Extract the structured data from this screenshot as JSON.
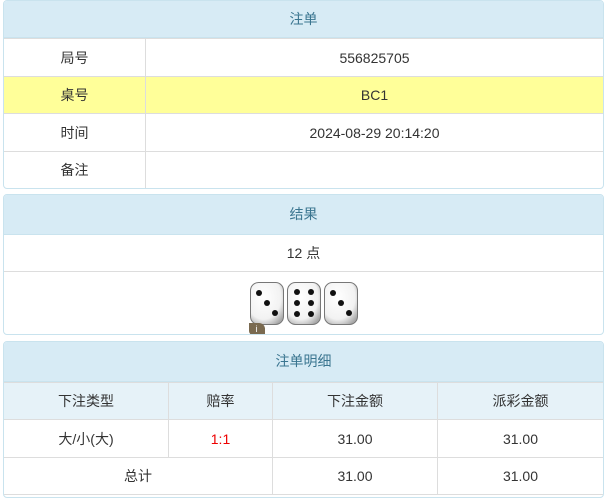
{
  "bet": {
    "title": "注单",
    "rows": [
      {
        "label": "局号",
        "value": "556825705"
      },
      {
        "label": "桌号",
        "value": "BC1"
      },
      {
        "label": "时间",
        "value": "2024-08-29 20:14:20"
      },
      {
        "label": "备注",
        "value": ""
      }
    ]
  },
  "result": {
    "title": "结果",
    "points": "12 点",
    "dice": [
      3,
      6,
      3
    ],
    "info_badge": "i"
  },
  "detail": {
    "title": "注单明细",
    "headers": [
      "下注类型",
      "赔率",
      "下注金额",
      "派彩金额"
    ],
    "row": {
      "type": "大/小(大)",
      "odds": "1:1",
      "bet": "31.00",
      "payout": "31.00"
    },
    "total": {
      "label": "总计",
      "bet": "31.00",
      "payout": "31.00"
    }
  },
  "colors": {
    "header_bg": "#d7ebf5",
    "highlight": "#ffff99",
    "odds": "#e00000"
  }
}
